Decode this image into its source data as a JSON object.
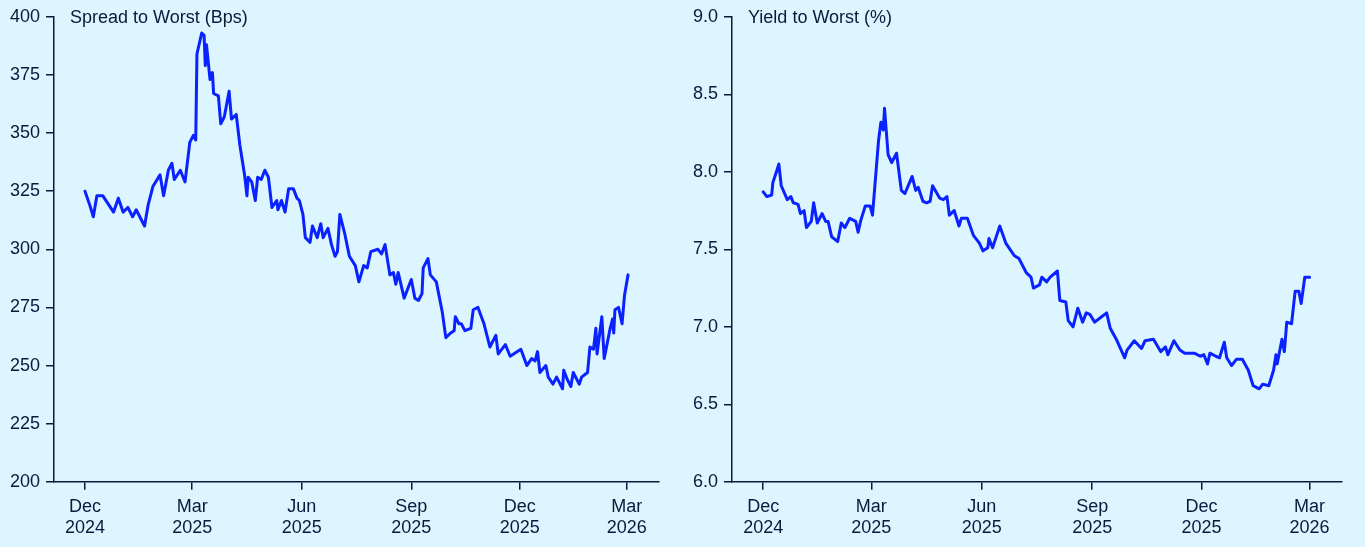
{
  "chart_data": [
    {
      "type": "line",
      "ylabel": "Spread to Worst (Bps)",
      "grid": false,
      "marker": "none",
      "line_style": "solid",
      "xlim": [
        "2024-11-05",
        "2026-03-28"
      ],
      "ylim": [
        200,
        400
      ],
      "yticks": [
        200,
        225,
        250,
        275,
        300,
        325,
        350,
        375,
        400
      ],
      "xticks": [
        {
          "value": "2024-12-01",
          "label": "Dec 2024"
        },
        {
          "value": "2025-03-01",
          "label": "Mar 2025"
        },
        {
          "value": "2025-06-01",
          "label": "Jun 2025"
        },
        {
          "value": "2025-09-01",
          "label": "Sep 2025"
        },
        {
          "value": "2025-12-01",
          "label": "Dec 2025"
        },
        {
          "value": "2026-03-01",
          "label": "Mar 2026"
        }
      ],
      "x": [
        "2024-12-01",
        "2024-12-05",
        "2024-12-08",
        "2024-12-11",
        "2024-12-16",
        "2024-12-25",
        "2024-12-29",
        "2025-01-02",
        "2025-01-06",
        "2025-01-10",
        "2025-01-13",
        "2025-01-20",
        "2025-01-23",
        "2025-01-27",
        "2025-02-02",
        "2025-02-05",
        "2025-02-09",
        "2025-02-12",
        "2025-02-14",
        "2025-02-19",
        "2025-02-23",
        "2025-02-27",
        "2025-03-02",
        "2025-03-04",
        "2025-03-05",
        "2025-03-09",
        "2025-03-11",
        "2025-03-12",
        "2025-03-13",
        "2025-03-16",
        "2025-03-18",
        "2025-03-19",
        "2025-03-23",
        "2025-03-25",
        "2025-03-28",
        "2025-04-01",
        "2025-04-03",
        "2025-04-07",
        "2025-04-10",
        "2025-04-14",
        "2025-04-16",
        "2025-04-17",
        "2025-04-20",
        "2025-04-23",
        "2025-04-25",
        "2025-04-28",
        "2025-05-01",
        "2025-05-04",
        "2025-05-07",
        "2025-05-11",
        "2025-05-12",
        "2025-05-15",
        "2025-05-18",
        "2025-05-21",
        "2025-05-25",
        "2025-05-28",
        "2025-05-30",
        "2025-06-02",
        "2025-06-04",
        "2025-06-08",
        "2025-06-10",
        "2025-06-14",
        "2025-06-17",
        "2025-06-19",
        "2025-06-23",
        "2025-06-26",
        "2025-06-29",
        "2025-07-01",
        "2025-07-03",
        "2025-07-07",
        "2025-07-11",
        "2025-07-16",
        "2025-07-19",
        "2025-07-23",
        "2025-07-26",
        "2025-07-29",
        "2025-08-04",
        "2025-08-07",
        "2025-08-10",
        "2025-08-14",
        "2025-08-17",
        "2025-08-19",
        "2025-08-21",
        "2025-08-26",
        "2025-09-01",
        "2025-09-04",
        "2025-09-07",
        "2025-09-10",
        "2025-09-11",
        "2025-09-15",
        "2025-09-17",
        "2025-09-22",
        "2025-09-27",
        "2025-09-30",
        "2025-10-04",
        "2025-10-07",
        "2025-10-08",
        "2025-10-11",
        "2025-10-13",
        "2025-10-16",
        "2025-10-21",
        "2025-10-23",
        "2025-10-27",
        "2025-11-01",
        "2025-11-06",
        "2025-11-11",
        "2025-11-13",
        "2025-11-19",
        "2025-11-23",
        "2025-12-02",
        "2025-12-07",
        "2025-12-11",
        "2025-12-14",
        "2025-12-16",
        "2025-12-18",
        "2025-12-23",
        "2025-12-25",
        "2025-12-29",
        "2026-01-01",
        "2026-01-06",
        "2026-01-07",
        "2026-01-10",
        "2026-01-13",
        "2026-01-15",
        "2026-01-20",
        "2026-01-22",
        "2026-01-27",
        "2026-01-29",
        "2026-02-01",
        "2026-02-03",
        "2026-02-04",
        "2026-02-08",
        "2026-02-10",
        "2026-02-15",
        "2026-02-17",
        "2026-02-18",
        "2026-02-19",
        "2026-02-22",
        "2026-02-25",
        "2026-02-27",
        "2026-03-02"
      ],
      "series": [
        {
          "color": "#0a22ff",
          "values": [
            325,
            319,
            314,
            323,
            323,
            316,
            322,
            316,
            318,
            314,
            317,
            310,
            319,
            327,
            332,
            323,
            334,
            337,
            330,
            334,
            329,
            346,
            349,
            347,
            384,
            393,
            392,
            379,
            388,
            373,
            376,
            367,
            366,
            354,
            357,
            368,
            356,
            358,
            345,
            332,
            323,
            331,
            329,
            321,
            331,
            330,
            334,
            331,
            318,
            321,
            317,
            321,
            316,
            326,
            326,
            322,
            321,
            315,
            305,
            303,
            310,
            305,
            311,
            305,
            309,
            302,
            297,
            299,
            315,
            307,
            297,
            293,
            286,
            293,
            292,
            299,
            300,
            298,
            302,
            289,
            290,
            285,
            290,
            279,
            287,
            279,
            278,
            281,
            292,
            296,
            289,
            286,
            273,
            262,
            264,
            265,
            271,
            268,
            268,
            265,
            266,
            274,
            275,
            268,
            258,
            263,
            255,
            259,
            254,
            257,
            250,
            253,
            252,
            256,
            247,
            250,
            245,
            242,
            245,
            240,
            248,
            244,
            241,
            247,
            242,
            245,
            247,
            258,
            257,
            266,
            255,
            271,
            253,
            266,
            270,
            264,
            274,
            275,
            268,
            280,
            289
          ]
        }
      ]
    },
    {
      "type": "line",
      "ylabel": "Yield to Worst (%)",
      "grid": false,
      "marker": "none",
      "line_style": "solid",
      "xlim": [
        "2024-11-05",
        "2026-03-28"
      ],
      "ylim": [
        6,
        9
      ],
      "yticks": [
        {
          "value": 6,
          "label": "6.0"
        },
        {
          "value": 6.5,
          "label": "6.5"
        },
        {
          "value": 7,
          "label": "7.0"
        },
        {
          "value": 7.5,
          "label": "7.5"
        },
        {
          "value": 8,
          "label": "8.0"
        },
        {
          "value": 8.5,
          "label": "8.5"
        },
        {
          "value": 9,
          "label": "9.0"
        }
      ],
      "xticks": [
        {
          "value": "2024-12-01",
          "label": "Dec 2024"
        },
        {
          "value": "2025-03-01",
          "label": "Mar 2025"
        },
        {
          "value": "2025-06-01",
          "label": "Jun 2025"
        },
        {
          "value": "2025-09-01",
          "label": "Sep 2025"
        },
        {
          "value": "2025-12-01",
          "label": "Dec 2025"
        },
        {
          "value": "2026-03-01",
          "label": "Mar 2026"
        }
      ],
      "x": [
        "2024-12-01",
        "2024-12-04",
        "2024-12-08",
        "2024-12-09",
        "2024-12-12",
        "2024-12-14",
        "2024-12-16",
        "2024-12-21",
        "2024-12-24",
        "2024-12-26",
        "2024-12-30",
        "2025-01-01",
        "2025-01-04",
        "2025-01-06",
        "2025-01-10",
        "2025-01-12",
        "2025-01-15",
        "2025-01-19",
        "2025-01-22",
        "2025-01-24",
        "2025-01-27",
        "2025-02-01",
        "2025-02-04",
        "2025-02-07",
        "2025-02-11",
        "2025-02-16",
        "2025-02-18",
        "2025-02-20",
        "2025-02-24",
        "2025-02-28",
        "2025-03-02",
        "2025-03-07",
        "2025-03-09",
        "2025-03-11",
        "2025-03-12",
        "2025-03-15",
        "2025-03-18",
        "2025-03-22",
        "2025-03-26",
        "2025-03-29",
        "2025-04-04",
        "2025-04-07",
        "2025-04-09",
        "2025-04-13",
        "2025-04-16",
        "2025-04-19",
        "2025-04-21",
        "2025-04-27",
        "2025-04-30",
        "2025-05-03",
        "2025-05-05",
        "2025-05-09",
        "2025-05-13",
        "2025-05-15",
        "2025-05-20",
        "2025-05-25",
        "2025-05-30",
        "2025-06-02",
        "2025-06-06",
        "2025-06-07",
        "2025-06-10",
        "2025-06-16",
        "2025-06-21",
        "2025-06-28",
        "2025-07-02",
        "2025-07-08",
        "2025-07-12",
        "2025-07-14",
        "2025-07-19",
        "2025-07-21",
        "2025-07-25",
        "2025-07-28",
        "2025-08-03",
        "2025-08-05",
        "2025-08-10",
        "2025-08-12",
        "2025-08-16",
        "2025-08-20",
        "2025-08-24",
        "2025-08-27",
        "2025-08-30",
        "2025-09-03",
        "2025-09-08",
        "2025-09-13",
        "2025-09-16",
        "2025-09-21",
        "2025-09-28",
        "2025-09-30",
        "2025-10-06",
        "2025-10-12",
        "2025-10-15",
        "2025-10-22",
        "2025-10-28",
        "2025-11-01",
        "2025-11-03",
        "2025-11-08",
        "2025-11-13",
        "2025-11-17",
        "2025-11-25",
        "2025-11-30",
        "2025-12-03",
        "2025-12-06",
        "2025-12-08",
        "2025-12-13",
        "2025-12-16",
        "2025-12-20",
        "2025-12-22",
        "2025-12-26",
        "2025-12-30",
        "2026-01-04",
        "2026-01-09",
        "2026-01-13",
        "2026-01-18",
        "2026-01-21",
        "2026-01-26",
        "2026-01-30",
        "2026-02-01",
        "2026-02-02",
        "2026-02-06",
        "2026-02-08",
        "2026-02-10",
        "2026-02-14",
        "2026-02-17",
        "2026-02-20",
        "2026-02-22",
        "2026-02-25",
        "2026-03-01"
      ],
      "series": [
        {
          "color": "#0a22ff",
          "values": [
            7.87,
            7.84,
            7.85,
            7.93,
            8.0,
            8.05,
            7.91,
            7.82,
            7.84,
            7.8,
            7.79,
            7.73,
            7.75,
            7.64,
            7.68,
            7.8,
            7.67,
            7.73,
            7.68,
            7.68,
            7.58,
            7.55,
            7.67,
            7.64,
            7.7,
            7.68,
            7.61,
            7.68,
            7.78,
            7.78,
            7.72,
            8.2,
            8.32,
            8.27,
            8.41,
            8.11,
            8.06,
            8.12,
            7.88,
            7.86,
            7.97,
            7.88,
            7.9,
            7.81,
            7.8,
            7.81,
            7.91,
            7.83,
            7.82,
            7.84,
            7.72,
            7.75,
            7.65,
            7.7,
            7.7,
            7.59,
            7.54,
            7.49,
            7.51,
            7.57,
            7.51,
            7.65,
            7.54,
            7.46,
            7.44,
            7.35,
            7.32,
            7.25,
            7.27,
            7.32,
            7.29,
            7.32,
            7.36,
            7.17,
            7.16,
            7.04,
            7.0,
            7.12,
            7.03,
            7.09,
            7.08,
            7.03,
            7.06,
            7.09,
            6.99,
            6.92,
            6.8,
            6.85,
            6.91,
            6.86,
            6.91,
            6.92,
            6.84,
            6.87,
            6.82,
            6.91,
            6.85,
            6.83,
            6.83,
            6.81,
            6.82,
            6.76,
            6.83,
            6.81,
            6.8,
            6.9,
            6.8,
            6.75,
            6.79,
            6.79,
            6.72,
            6.62,
            6.6,
            6.63,
            6.62,
            6.72,
            6.82,
            6.76,
            6.92,
            6.84,
            7.03,
            7.02,
            7.23,
            7.23,
            7.15,
            7.32,
            7.32
          ]
        }
      ]
    }
  ]
}
